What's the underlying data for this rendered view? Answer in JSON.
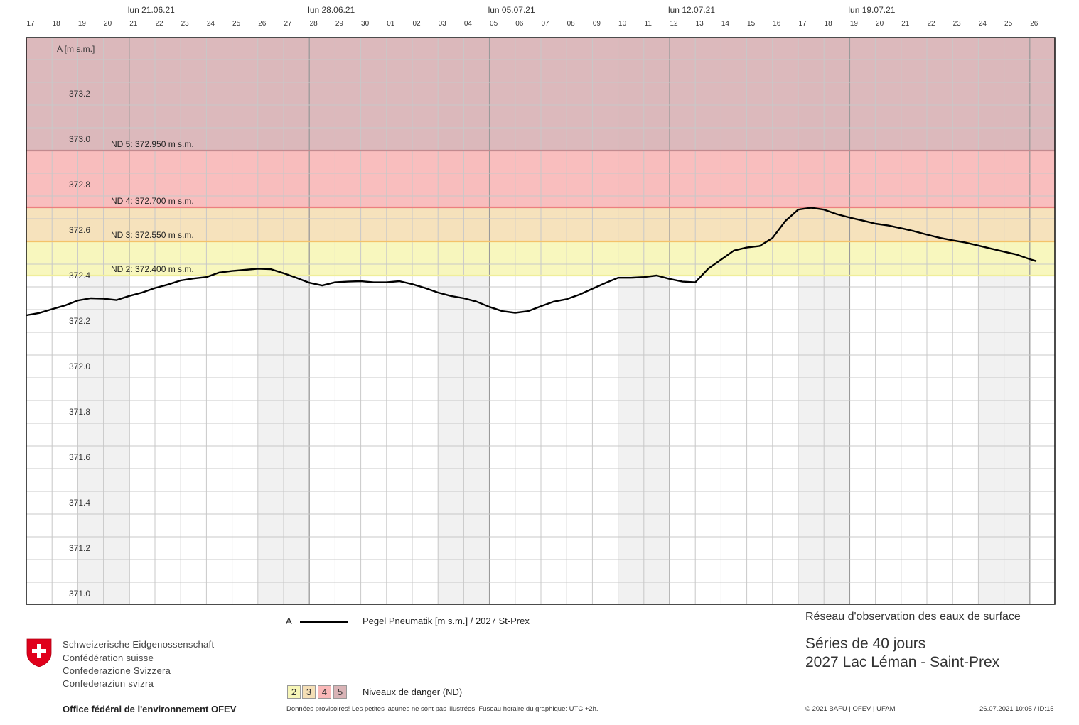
{
  "chart_data": {
    "type": "line",
    "y_axis_label": "A [m s.m.]",
    "ylim": [
      370.95,
      373.45
    ],
    "y_ticks": [
      373.2,
      373.0,
      372.8,
      372.6,
      372.4,
      372.2,
      372.0,
      371.8,
      371.6,
      371.4,
      371.2,
      371.0
    ],
    "y_tick_labels": [
      "373.2",
      "373.0",
      "372.8",
      "372.6",
      "372.4",
      "372.2",
      "372.0",
      "371.8",
      "371.6",
      "371.4",
      "371.2",
      "371.0"
    ],
    "x_start": "2021-06-17",
    "x_end": "2021-07-26",
    "day_labels": [
      "17",
      "18",
      "19",
      "20",
      "21",
      "22",
      "23",
      "24",
      "25",
      "26",
      "27",
      "28",
      "29",
      "30",
      "01",
      "02",
      "03",
      "04",
      "05",
      "06",
      "07",
      "08",
      "09",
      "10",
      "11",
      "12",
      "13",
      "14",
      "15",
      "16",
      "17",
      "18",
      "19",
      "20",
      "21",
      "22",
      "23",
      "24",
      "25",
      "26"
    ],
    "week_labels": [
      {
        "date": "2021-06-21",
        "label": "lun 21.06.21"
      },
      {
        "date": "2021-06-28",
        "label": "lun 28.06.21"
      },
      {
        "date": "2021-07-05",
        "label": "lun 05.07.21"
      },
      {
        "date": "2021-07-12",
        "label": "lun 12.07.21"
      },
      {
        "date": "2021-07-19",
        "label": "lun 19.07.21"
      }
    ],
    "danger_levels": [
      {
        "level": 2,
        "value": 372.4,
        "label": "ND 2: 372.400 m s.m.",
        "color": "#f7f6b8",
        "line_color": "#f0ee9a"
      },
      {
        "level": 3,
        "value": 372.55,
        "label": "ND 3: 372.550 m s.m.",
        "color": "#f5dfb6",
        "line_color": "#f4c26a"
      },
      {
        "level": 4,
        "value": 372.7,
        "label": "ND 4: 372.700 m s.m.",
        "color": "#f9b8b8",
        "line_color": "#ec7f7f"
      },
      {
        "level": 5,
        "value": 372.95,
        "label": "ND 5: 372.950 m s.m.",
        "color": "#d9b3b6",
        "line_color": "#c28a8f"
      }
    ],
    "series": [
      {
        "name": "Pegel Pneumatik [m s.m.] / 2027 St-Prex",
        "color": "#000000",
        "points": [
          [
            "2021-06-17 00:00",
            372.225
          ],
          [
            "2021-06-17 12:00",
            372.235
          ],
          [
            "2021-06-18 00:00",
            372.252
          ],
          [
            "2021-06-18 12:00",
            372.268
          ],
          [
            "2021-06-19 00:00",
            372.29
          ],
          [
            "2021-06-19 12:00",
            372.3
          ],
          [
            "2021-06-20 00:00",
            372.298
          ],
          [
            "2021-06-20 12:00",
            372.292
          ],
          [
            "2021-06-21 00:00",
            372.31
          ],
          [
            "2021-06-21 12:00",
            372.325
          ],
          [
            "2021-06-22 00:00",
            372.345
          ],
          [
            "2021-06-22 12:00",
            372.36
          ],
          [
            "2021-06-23 00:00",
            372.378
          ],
          [
            "2021-06-23 12:00",
            372.387
          ],
          [
            "2021-06-24 00:00",
            372.393
          ],
          [
            "2021-06-24 12:00",
            372.413
          ],
          [
            "2021-06-25 00:00",
            372.42
          ],
          [
            "2021-06-25 12:00",
            372.425
          ],
          [
            "2021-06-26 00:00",
            372.43
          ],
          [
            "2021-06-26 12:00",
            372.428
          ],
          [
            "2021-06-27 00:00",
            372.41
          ],
          [
            "2021-06-27 12:00",
            372.39
          ],
          [
            "2021-06-28 00:00",
            372.368
          ],
          [
            "2021-06-28 12:00",
            372.356
          ],
          [
            "2021-06-29 00:00",
            372.37
          ],
          [
            "2021-06-29 12:00",
            372.373
          ],
          [
            "2021-06-30 00:00",
            372.375
          ],
          [
            "2021-06-30 12:00",
            372.37
          ],
          [
            "2021-07-01 00:00",
            372.37
          ],
          [
            "2021-07-01 12:00",
            372.375
          ],
          [
            "2021-07-02 00:00",
            372.362
          ],
          [
            "2021-07-02 12:00",
            372.345
          ],
          [
            "2021-07-03 00:00",
            372.325
          ],
          [
            "2021-07-03 12:00",
            372.31
          ],
          [
            "2021-07-04 00:00",
            372.3
          ],
          [
            "2021-07-04 12:00",
            372.285
          ],
          [
            "2021-07-05 00:00",
            372.262
          ],
          [
            "2021-07-05 12:00",
            372.243
          ],
          [
            "2021-07-06 00:00",
            372.236
          ],
          [
            "2021-07-06 12:00",
            372.243
          ],
          [
            "2021-07-07 00:00",
            372.265
          ],
          [
            "2021-07-07 12:00",
            372.285
          ],
          [
            "2021-07-08 00:00",
            372.296
          ],
          [
            "2021-07-08 12:00",
            372.316
          ],
          [
            "2021-07-09 00:00",
            372.342
          ],
          [
            "2021-07-09 12:00",
            372.367
          ],
          [
            "2021-07-10 00:00",
            372.39
          ],
          [
            "2021-07-10 12:00",
            372.39
          ],
          [
            "2021-07-11 00:00",
            372.393
          ],
          [
            "2021-07-11 12:00",
            372.4
          ],
          [
            "2021-07-12 00:00",
            372.385
          ],
          [
            "2021-07-12 12:00",
            372.373
          ],
          [
            "2021-07-13 00:00",
            372.37
          ],
          [
            "2021-07-13 06:00",
            372.4
          ],
          [
            "2021-07-13 12:00",
            372.43
          ],
          [
            "2021-07-14 00:00",
            372.47
          ],
          [
            "2021-07-14 12:00",
            372.51
          ],
          [
            "2021-07-15 00:00",
            372.523
          ],
          [
            "2021-07-15 12:00",
            372.53
          ],
          [
            "2021-07-16 00:00",
            372.565
          ],
          [
            "2021-07-16 12:00",
            372.64
          ],
          [
            "2021-07-17 00:00",
            372.69
          ],
          [
            "2021-07-17 12:00",
            372.698
          ],
          [
            "2021-07-18 00:00",
            372.69
          ],
          [
            "2021-07-18 12:00",
            372.67
          ],
          [
            "2021-07-19 00:00",
            372.655
          ],
          [
            "2021-07-19 12:00",
            372.642
          ],
          [
            "2021-07-20 00:00",
            372.628
          ],
          [
            "2021-07-20 12:00",
            372.62
          ],
          [
            "2021-07-21 00:00",
            372.608
          ],
          [
            "2021-07-21 12:00",
            372.595
          ],
          [
            "2021-07-22 00:00",
            372.58
          ],
          [
            "2021-07-22 12:00",
            372.566
          ],
          [
            "2021-07-23 00:00",
            372.555
          ],
          [
            "2021-07-23 12:00",
            372.545
          ],
          [
            "2021-07-24 00:00",
            372.532
          ],
          [
            "2021-07-24 12:00",
            372.518
          ],
          [
            "2021-07-25 00:00",
            372.505
          ],
          [
            "2021-07-25 12:00",
            372.492
          ],
          [
            "2021-07-26 00:00",
            372.472
          ],
          [
            "2021-07-26 06:00",
            372.463
          ]
        ]
      }
    ],
    "grid": true
  },
  "legend": {
    "axis_letter": "A",
    "series_label": "Pegel Pneumatik [m s.m.] / 2027 St-Prex",
    "danger_boxes": [
      "2",
      "3",
      "4",
      "5"
    ],
    "danger_label": "Niveaux de danger (ND)"
  },
  "header_right": {
    "network": "Réseau d'observation des eaux de surface",
    "series": "Séries de 40 jours",
    "station": "2027 Lac Léman - Saint-Prex"
  },
  "footer": {
    "disclaimer": "Données provisoires! Les petites lacunes ne sont pas illustrées. Fuseau horaire du graphique: UTC +2h.",
    "copyright": "© 2021 BAFU | OFEV | UFAM",
    "timestamp": "26.07.2021 10:05 / ID:15"
  },
  "confederation": {
    "lines": [
      "Schweizerische Eidgenossenschaft",
      "Confédération suisse",
      "Confederazione Svizzera",
      "Confederaziun svizra"
    ],
    "office": "Office fédéral de l'environnement OFEV"
  },
  "colors": {
    "weekend_shade": "#f1f1f1",
    "grid": "#c8c8c8",
    "week_separator": "#9a9a9a",
    "flag_red": "#e0001b"
  }
}
